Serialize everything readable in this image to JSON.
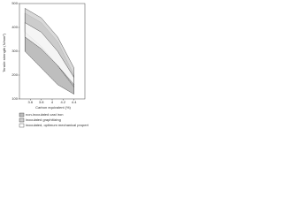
{
  "chart_data": {
    "type": "area",
    "y_label": "Tensile strength (N/mm²)",
    "x_label": "Carbon equivalent (%)",
    "x": [
      3.5,
      3.8,
      4.1,
      4.4
    ],
    "series": [
      {
        "name": "non-inoculated cast iron",
        "color": "#9a9a9a",
        "hatch": true,
        "upper": [
          460,
          420,
          340,
          200
        ],
        "lower": [
          300,
          230,
          160,
          120
        ]
      },
      {
        "name": "inoculated graphitizing",
        "color": "#cfcfcf",
        "hatch": false,
        "upper": [
          480,
          440,
          360,
          230
        ],
        "lower": [
          380,
          320,
          240,
          150
        ]
      },
      {
        "name": "inoculated, optimum mechanical properties",
        "color": "#ffffff",
        "hatch": false,
        "upper": [
          420,
          380,
          300,
          190
        ],
        "lower": [
          360,
          310,
          240,
          160
        ]
      }
    ],
    "xlim": [
      3.4,
      4.6
    ],
    "xticks": [
      3.6,
      3.8,
      4.0,
      4.2,
      4.4
    ],
    "ylim": [
      100,
      500
    ],
    "yticks": [
      100,
      200,
      300,
      400,
      500
    ]
  }
}
